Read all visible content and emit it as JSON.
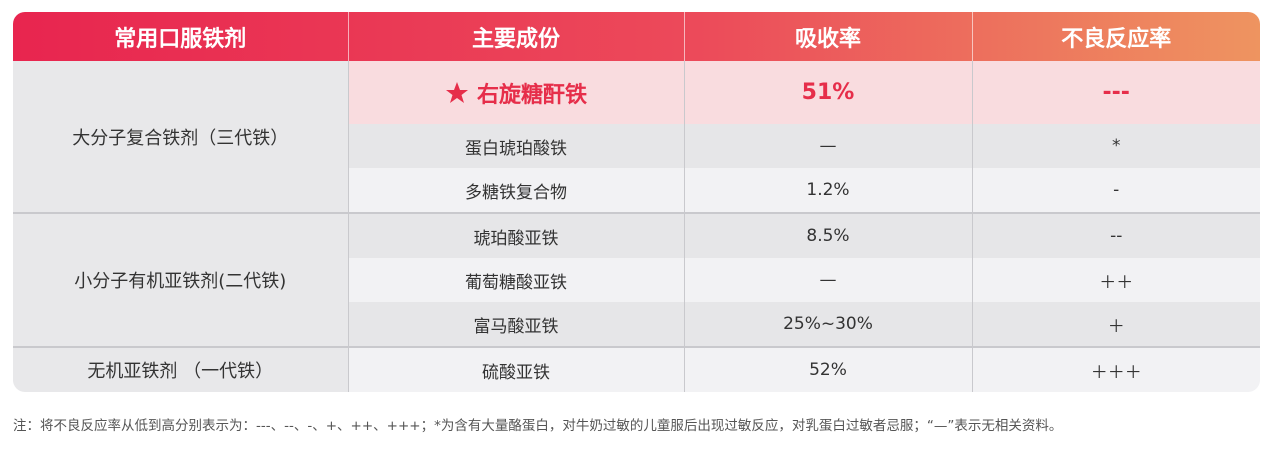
{
  "table": {
    "header": [
      "常用口服铁剂",
      "主要成份",
      "吸收率",
      "不良反应率"
    ],
    "groups": [
      {
        "name": "大分子复合铁剂（三代铁）",
        "rows": [
          [
            "右旋糖酐铁",
            "51%",
            "---"
          ],
          [
            "蛋白琥珀酸铁",
            "—",
            "*"
          ],
          [
            "多糖铁复合物",
            "1.2%",
            "-"
          ]
        ]
      },
      {
        "name": "小分子有机亚铁剂(二代铁)",
        "rows": [
          [
            "琥珀酸亚铁",
            "8.5%",
            "--"
          ],
          [
            "葡萄糖酸亚铁",
            "—",
            "＋＋"
          ],
          [
            "富马酸亚铁",
            "25%~30%",
            "＋"
          ]
        ]
      },
      {
        "name": "无机亚铁剂 （一代铁）",
        "rows": [
          [
            "硫酸亚铁",
            "52%",
            "＋＋＋"
          ]
        ]
      }
    ]
  },
  "note": "注：将不良反应率从低到高分别表示为：---、--、-、+、++、+++；*为含有大量酪蛋白，对牛奶过敏的儿童服后出现过敏反应，对乳蛋白过敏者忌服；“—”表示无相关资料。"
}
